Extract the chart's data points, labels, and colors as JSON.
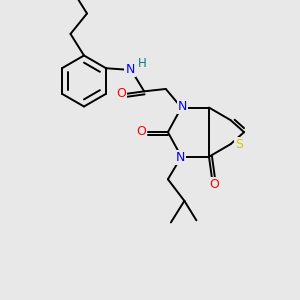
{
  "background_color": "#e8e8e8",
  "bond_color": "#000000",
  "atom_colors": {
    "N": "#0000ff",
    "O": "#ff0000",
    "S": "#cccc00",
    "H": "#008080",
    "C": "#000000"
  },
  "figsize": [
    3.0,
    3.0
  ],
  "dpi": 100,
  "lw": 1.4,
  "xlim": [
    0,
    10
  ],
  "ylim": [
    0,
    10
  ]
}
